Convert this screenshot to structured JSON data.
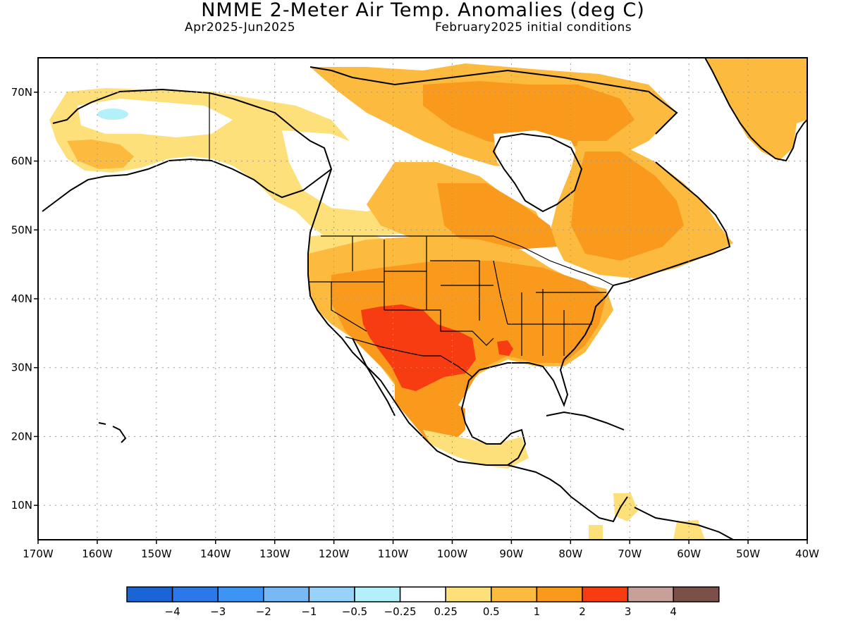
{
  "header": {
    "title": "NMME 2-Meter Air Temp. Anomalies (deg C)",
    "period": "Apr2025-Jun2025",
    "init": "February2025 initial conditions"
  },
  "axes": {
    "lat_ticks": [
      "70N",
      "60N",
      "50N",
      "40N",
      "30N",
      "20N",
      "10N"
    ],
    "lat_values": [
      70,
      60,
      50,
      40,
      30,
      20,
      10
    ],
    "lon_ticks": [
      "170W",
      "160W",
      "150W",
      "140W",
      "130W",
      "120W",
      "110W",
      "100W",
      "90W",
      "80W",
      "70W",
      "60W",
      "50W",
      "40W"
    ],
    "lon_values": [
      -170,
      -160,
      -150,
      -140,
      -130,
      -120,
      -110,
      -100,
      -90,
      -80,
      -70,
      -60,
      -50,
      -40
    ],
    "lat_range": [
      5,
      75
    ],
    "lon_range": [
      -170,
      -40
    ]
  },
  "legend": {
    "colors": [
      "#1a64d6",
      "#2a78ea",
      "#3e94f3",
      "#78b8f5",
      "#98d2f8",
      "#b4f0fa",
      "#ffffff",
      "#fde07a",
      "#fcbb3f",
      "#f99a1c",
      "#f63c10",
      "#c8a09a",
      "#7a5048"
    ],
    "labels": [
      "−4",
      "−3",
      "−2",
      "−1",
      "−0.5",
      "−0.25",
      "0.25",
      "0.5",
      "1",
      "2",
      "3",
      "4"
    ]
  },
  "chart_data": {
    "type": "heatmap",
    "title": "NMME 2-Meter Air Temp. Anomalies (deg C)",
    "subtitle": "Apr2025-Jun2025    February2025 initial conditions",
    "units": "deg C",
    "bins": [
      -4,
      -3,
      -2,
      -1,
      -0.5,
      -0.25,
      0.25,
      0.5,
      1,
      2,
      3,
      4
    ],
    "regions": [
      {
        "name": "Southwest US / northern Mexico",
        "anomaly_range": [
          2,
          3
        ]
      },
      {
        "name": "Central and eastern US",
        "anomaly_range": [
          1,
          2
        ]
      },
      {
        "name": "Eastern Canada / Quebec / Labrador",
        "anomaly_range": [
          1,
          2
        ]
      },
      {
        "name": "Northern Canada / Arctic islands",
        "anomaly_range": [
          1,
          2
        ]
      },
      {
        "name": "Greenland",
        "anomaly_range": [
          0.5,
          1
        ]
      },
      {
        "name": "Pacific Northwest",
        "anomaly_range": [
          0.5,
          1
        ]
      },
      {
        "name": "Yukon / Northwest Territories",
        "anomaly_range": [
          0.25,
          0.5
        ]
      },
      {
        "name": "Alaska interior",
        "anomaly_range": [
          -0.25,
          0.25
        ]
      },
      {
        "name": "Northwest Alaska spot",
        "anomaly_range": [
          -0.5,
          -0.25
        ]
      },
      {
        "name": "Southern Mexico / Central America",
        "anomaly_range": [
          0.25,
          0.5
        ]
      },
      {
        "name": "Oceans",
        "anomaly_range": [
          -0.25,
          0.25
        ]
      }
    ]
  }
}
